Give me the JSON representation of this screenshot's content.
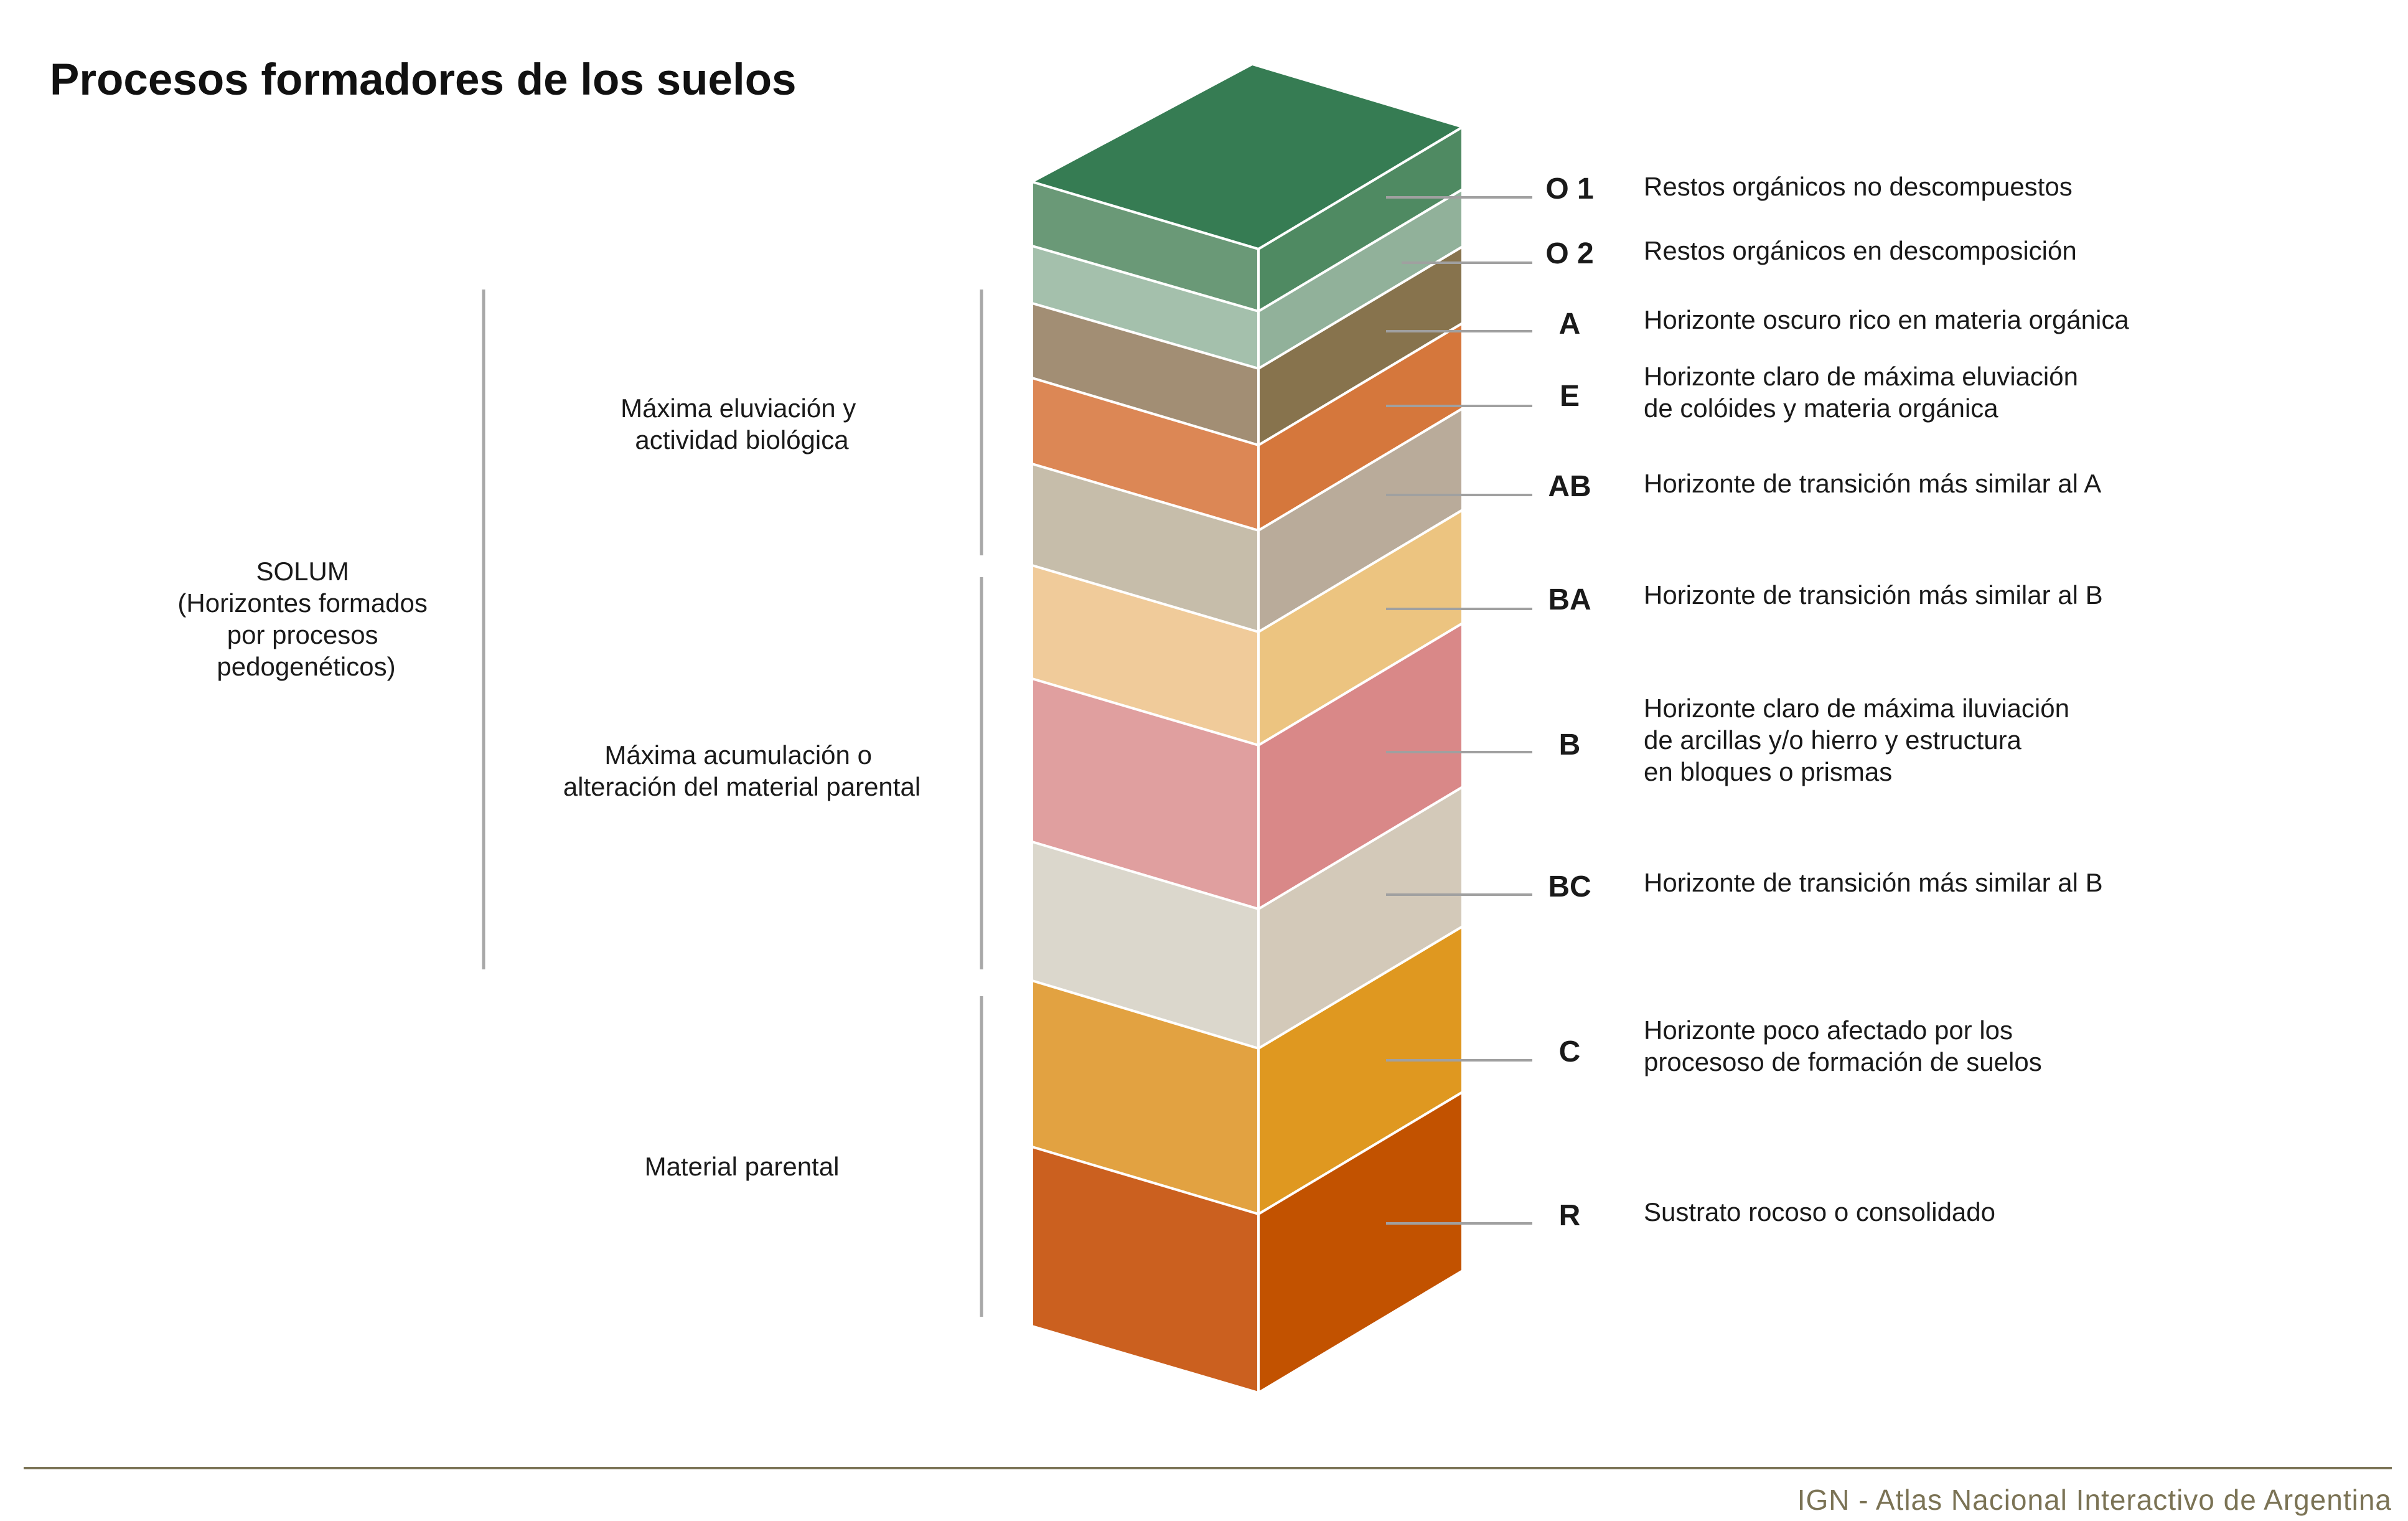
{
  "title": "Procesos formadores de los suelos",
  "groups": {
    "solum": [
      "SOLUM",
      "(Horizontes formados",
      "por procesos",
      "pedogenéticos)"
    ],
    "eluviation": [
      "Máxima eluviación y",
      "actividad biológica"
    ],
    "accumulation": [
      "Máxima acumulación o",
      "alteración del material parental"
    ],
    "parent": [
      "Material parental"
    ]
  },
  "horizons": [
    {
      "code": "O 1",
      "description": [
        "Restos orgánicos no descompuestos"
      ],
      "front_color": "#6a9977",
      "side_color": "#4f8a62"
    },
    {
      "code": "O 2",
      "description": [
        "Restos orgánicos en descomposición"
      ],
      "front_color": "#a4c0ac",
      "side_color": "#91b19a"
    },
    {
      "code": "A",
      "description": [
        "Horizonte oscuro rico en materia orgánica"
      ],
      "front_color": "#a28e74",
      "side_color": "#87734d"
    },
    {
      "code": "E",
      "description": [
        "Horizonte claro de máxima eluviación",
        "de colóides y materia orgánica"
      ],
      "front_color": "#dc8755",
      "side_color": "#d5773c"
    },
    {
      "code": "AB",
      "description": [
        "Horizonte de transición más similar al A"
      ],
      "front_color": "#c6bdaa",
      "side_color": "#b9ab9a"
    },
    {
      "code": "BA",
      "description": [
        "Horizonte de transición más similar al B"
      ],
      "front_color": "#f0cb9a",
      "side_color": "#ecc480"
    },
    {
      "code": "B",
      "description": [
        "Horizonte claro de máxima iluviación",
        "de arcillas y/o hierro y estructura",
        "en bloques o prismas"
      ],
      "front_color": "#e09f9f",
      "side_color": "#d98888"
    },
    {
      "code": "BC",
      "description": [
        "Horizonte de transición más similar al B"
      ],
      "front_color": "#dbd7cc",
      "side_color": "#d3c9b9"
    },
    {
      "code": "C",
      "description": [
        "Horizonte poco afectado por los",
        "procesoso de formación de suelos"
      ],
      "front_color": "#e2a241",
      "side_color": "#df9820"
    },
    {
      "code": "R",
      "description": [
        "Sustrato rocoso o consolidado"
      ],
      "front_color": "#cb601f",
      "side_color": "#c25200"
    }
  ],
  "top_color": "#367c53",
  "footer": "IGN - Atlas Nacional Interactivo de Argentina",
  "footer_line_color": "#7b7355"
}
